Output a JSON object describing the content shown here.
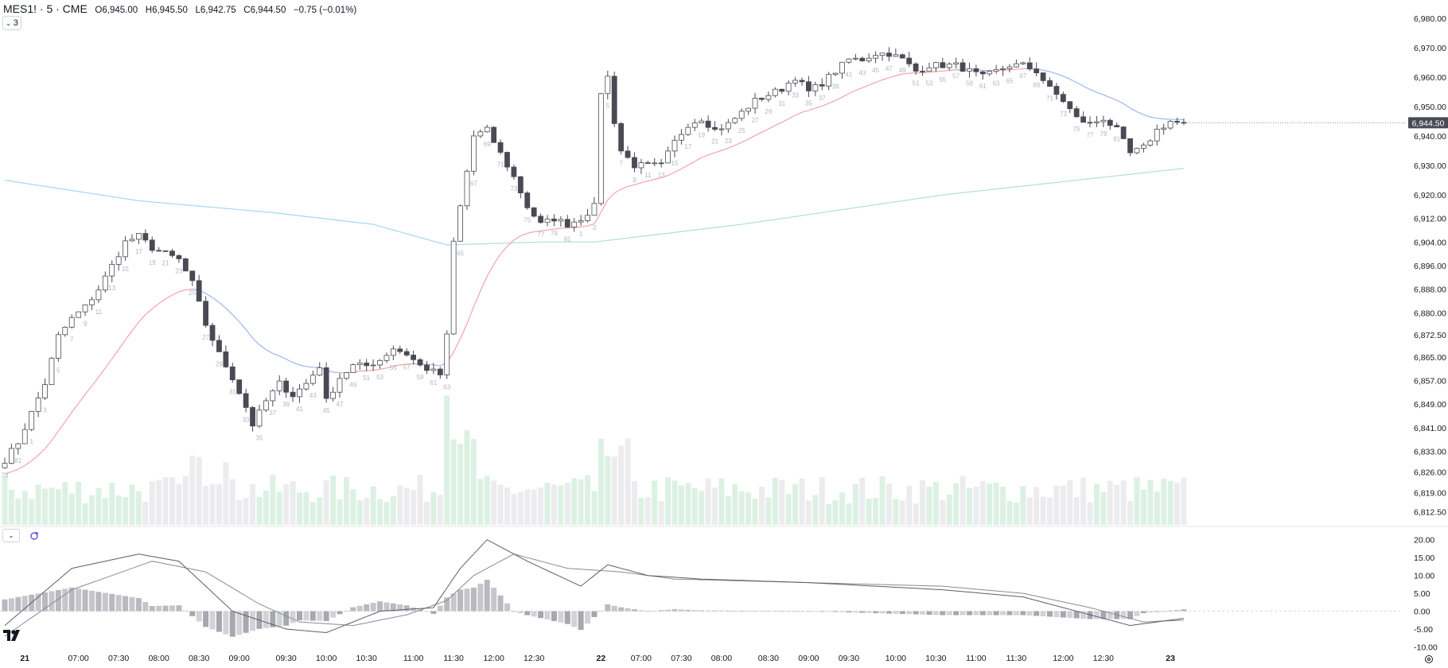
{
  "header": {
    "symbol": "MES1! · 5 · CME",
    "o_label": "O",
    "o_value": "6,945.00",
    "h_label": "H",
    "h_value": "6,945.50",
    "l_label": "L",
    "l_value": "6,942.75",
    "c_label": "C",
    "c_value": "6,944.50",
    "change": "−0.75 (−0.01%)"
  },
  "indicator_toggle": {
    "label": "3"
  },
  "last_price_label": "6,944.50",
  "colors": {
    "up_body": "#ffffff",
    "down_body": "#4a4a55",
    "wick": "#4a4a55",
    "ema_fast_up": "#f5a3a8",
    "ema_fast_down": "#9db4ef",
    "ma_slow_down": "#a9dcf0",
    "ma_slow_up": "#b6e3d2",
    "vol_up": "#dcf1e3",
    "vol_down": "#ececef",
    "macd": "#5d5d66",
    "signal": "#8a8a94",
    "hist": "#b9b9c0",
    "axis_text": "#131722",
    "bar_count_text": "#b2b5be"
  },
  "chart_data": [
    {
      "type": "candlestick",
      "title": "",
      "price_axis": [
        "6,980.00",
        "6,970.00",
        "6,960.00",
        "6,950.00",
        "6,940.00",
        "6,930.00",
        "6,920.00",
        "6,912.00",
        "6,904.00",
        "6,896.00",
        "6,888.00",
        "6,880.00",
        "6,872.50",
        "6,865.00",
        "6,857.00",
        "6,849.00",
        "6,841.00",
        "6,833.00",
        "6,826.00",
        "6,819.00",
        "6,812.50"
      ],
      "ylim": [
        6808,
        6984
      ],
      "time_axis": [
        "21",
        "07:00",
        "07:30",
        "08:00",
        "08:30",
        "09:00",
        "09:30",
        "10:00",
        "10:30",
        "11:00",
        "11:30",
        "12:00",
        "12:30",
        "22",
        "07:00",
        "07:30",
        "08:00",
        "08:30",
        "09:00",
        "09:30",
        "10:00",
        "10:30",
        "11:00",
        "11:30",
        "12:00",
        "12:30",
        "23"
      ],
      "anchors": [
        [
          0,
          6830
        ],
        [
          2,
          6836
        ],
        [
          4,
          6846
        ],
        [
          6,
          6856
        ],
        [
          8,
          6872
        ],
        [
          10,
          6878
        ],
        [
          12,
          6882
        ],
        [
          14,
          6888
        ],
        [
          16,
          6896
        ],
        [
          18,
          6904
        ],
        [
          20,
          6906
        ],
        [
          22,
          6902
        ],
        [
          24,
          6900
        ],
        [
          26,
          6898
        ],
        [
          28,
          6890
        ],
        [
          30,
          6876
        ],
        [
          32,
          6866
        ],
        [
          34,
          6858
        ],
        [
          36,
          6848
        ],
        [
          37,
          6842
        ],
        [
          39,
          6850
        ],
        [
          41,
          6856
        ],
        [
          43,
          6852
        ],
        [
          45,
          6856
        ],
        [
          47,
          6862
        ],
        [
          48,
          6850
        ],
        [
          50,
          6858
        ],
        [
          52,
          6862
        ],
        [
          54,
          6862
        ],
        [
          56,
          6864
        ],
        [
          58,
          6868
        ],
        [
          60,
          6866
        ],
        [
          62,
          6862
        ],
        [
          64,
          6860
        ],
        [
          65,
          6859
        ],
        [
          66,
          6872
        ],
        [
          67,
          6904
        ],
        [
          68,
          6916
        ],
        [
          69,
          6928
        ],
        [
          70,
          6940
        ],
        [
          72,
          6942
        ],
        [
          74,
          6934
        ],
        [
          76,
          6926
        ],
        [
          78,
          6916
        ],
        [
          80,
          6910
        ],
        [
          82,
          6912
        ],
        [
          84,
          6910
        ],
        [
          86,
          6912
        ],
        [
          88,
          6916
        ],
        [
          89,
          6955
        ],
        [
          90,
          6960
        ],
        [
          91,
          6945
        ],
        [
          92,
          6935
        ],
        [
          94,
          6930
        ],
        [
          96,
          6930
        ],
        [
          98,
          6930
        ],
        [
          100,
          6938
        ],
        [
          102,
          6944
        ],
        [
          104,
          6946
        ],
        [
          106,
          6942
        ],
        [
          108,
          6944
        ],
        [
          110,
          6948
        ],
        [
          112,
          6952
        ],
        [
          114,
          6954
        ],
        [
          116,
          6956
        ],
        [
          118,
          6960
        ],
        [
          120,
          6955
        ],
        [
          122,
          6958
        ],
        [
          124,
          6962
        ],
        [
          126,
          6966
        ],
        [
          128,
          6966
        ],
        [
          130,
          6968
        ],
        [
          132,
          6968
        ],
        [
          134,
          6966
        ],
        [
          136,
          6962
        ],
        [
          138,
          6964
        ],
        [
          140,
          6964
        ],
        [
          142,
          6964
        ],
        [
          144,
          6962
        ],
        [
          146,
          6960
        ],
        [
          148,
          6962
        ],
        [
          150,
          6964
        ],
        [
          152,
          6964
        ],
        [
          154,
          6962
        ],
        [
          156,
          6956
        ],
        [
          158,
          6952
        ],
        [
          160,
          6946
        ],
        [
          162,
          6944
        ],
        [
          164,
          6946
        ],
        [
          166,
          6942
        ],
        [
          168,
          6934
        ],
        [
          170,
          6936
        ],
        [
          172,
          6942
        ],
        [
          174,
          6945
        ],
        [
          176,
          6944
        ]
      ],
      "bar_count_labels": [
        "79",
        "81",
        "1",
        "3",
        "5",
        "7",
        "9",
        "11",
        "13",
        "15",
        "17",
        "19",
        "21",
        "23",
        "25",
        "27",
        "29",
        "31",
        "33",
        "35",
        "37",
        "39",
        "41",
        "43",
        "45",
        "47",
        "49",
        "51",
        "53",
        "55",
        "57",
        "59",
        "61",
        "63",
        "65",
        "67",
        "69",
        "71",
        "73",
        "75",
        "77",
        "79",
        "81",
        "1",
        "3",
        "5",
        "7",
        "9",
        "11",
        "13",
        "15",
        "17",
        "19",
        "21",
        "23",
        "25",
        "27",
        "29",
        "31",
        "33",
        "35",
        "37",
        "39",
        "41",
        "43",
        "45",
        "47",
        "49",
        "51",
        "53",
        "55",
        "57",
        "59",
        "61",
        "63",
        "65",
        "67",
        "69",
        "71",
        "73",
        "75",
        "77",
        "79",
        "81"
      ],
      "overlays": [
        "EMA (fast)",
        "MA (slow)"
      ]
    },
    {
      "type": "bar",
      "title": "",
      "series": [
        {
          "values_note": "volume histogram"
        }
      ]
    },
    {
      "type": "line",
      "title": "",
      "y_axis": [
        "20.00",
        "15.00",
        "10.00",
        "5.00",
        "0.00",
        "-5.00",
        "-10.00"
      ],
      "ylim": [
        -11,
        21.5
      ],
      "macd_anchors": [
        [
          0,
          -4
        ],
        [
          10,
          12
        ],
        [
          20,
          16
        ],
        [
          26,
          14
        ],
        [
          34,
          0
        ],
        [
          42,
          -5
        ],
        [
          48,
          -6
        ],
        [
          56,
          0
        ],
        [
          64,
          1
        ],
        [
          68,
          12
        ],
        [
          72,
          20
        ],
        [
          78,
          14
        ],
        [
          86,
          7
        ],
        [
          90,
          13
        ],
        [
          96,
          10
        ],
        [
          104,
          9
        ],
        [
          120,
          8
        ],
        [
          140,
          6
        ],
        [
          152,
          4
        ],
        [
          160,
          0
        ],
        [
          168,
          -4
        ],
        [
          176,
          -2
        ]
      ],
      "signal_anchors": [
        [
          0,
          -7
        ],
        [
          10,
          6
        ],
        [
          22,
          14
        ],
        [
          30,
          11
        ],
        [
          38,
          2
        ],
        [
          44,
          -3
        ],
        [
          52,
          -4
        ],
        [
          60,
          -1
        ],
        [
          66,
          3
        ],
        [
          70,
          10
        ],
        [
          76,
          16
        ],
        [
          84,
          12
        ],
        [
          92,
          11
        ],
        [
          100,
          9
        ],
        [
          120,
          8
        ],
        [
          140,
          7
        ],
        [
          152,
          5
        ],
        [
          162,
          1
        ],
        [
          170,
          -3
        ],
        [
          176,
          -2.5
        ]
      ]
    }
  ]
}
